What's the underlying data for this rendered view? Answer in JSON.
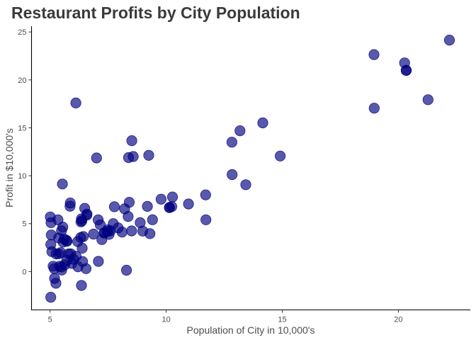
{
  "chart_data": {
    "type": "scatter",
    "title": "Restaurant Profits by City Population",
    "xlabel": "Population of City in 10,000's",
    "ylabel": "Profit in $10,000's",
    "xlim": [
      4.2,
      23.1
    ],
    "ylim": [
      -4.0,
      25.6
    ],
    "x_ticks": [
      5,
      10,
      15,
      20
    ],
    "y_ticks": [
      0,
      5,
      10,
      15,
      20,
      25
    ],
    "grid": false,
    "marker_color": "#000080",
    "marker_opacity": 0.65,
    "points": [
      {
        "x": 6.11,
        "y": 17.59
      },
      {
        "x": 5.53,
        "y": 9.13
      },
      {
        "x": 8.52,
        "y": 13.66
      },
      {
        "x": 7.0,
        "y": 11.85
      },
      {
        "x": 5.86,
        "y": 6.82
      },
      {
        "x": 8.38,
        "y": 11.89
      },
      {
        "x": 7.48,
        "y": 4.35
      },
      {
        "x": 8.58,
        "y": 12.0
      },
      {
        "x": 6.49,
        "y": 6.6
      },
      {
        "x": 5.05,
        "y": 3.82
      },
      {
        "x": 5.71,
        "y": 3.25
      },
      {
        "x": 14.16,
        "y": 15.51
      },
      {
        "x": 5.73,
        "y": 3.16
      },
      {
        "x": 8.41,
        "y": 7.23
      },
      {
        "x": 5.64,
        "y": 0.72
      },
      {
        "x": 5.37,
        "y": 3.51
      },
      {
        "x": 6.37,
        "y": 5.3
      },
      {
        "x": 5.13,
        "y": 0.56
      },
      {
        "x": 6.43,
        "y": 3.65
      },
      {
        "x": 7.07,
        "y": 5.39
      },
      {
        "x": 6.19,
        "y": 3.13
      },
      {
        "x": 20.27,
        "y": 21.77
      },
      {
        "x": 5.49,
        "y": 4.26
      },
      {
        "x": 6.33,
        "y": 5.19
      },
      {
        "x": 5.56,
        "y": 3.08
      },
      {
        "x": 18.95,
        "y": 22.64
      },
      {
        "x": 12.83,
        "y": 13.5
      },
      {
        "x": 10.96,
        "y": 7.05
      },
      {
        "x": 13.18,
        "y": 14.69
      },
      {
        "x": 22.2,
        "y": 24.15
      },
      {
        "x": 5.25,
        "y": -1.22
      },
      {
        "x": 6.59,
        "y": 5.99
      },
      {
        "x": 9.25,
        "y": 12.13
      },
      {
        "x": 5.89,
        "y": 1.85
      },
      {
        "x": 8.21,
        "y": 6.54
      },
      {
        "x": 7.93,
        "y": 4.56
      },
      {
        "x": 8.1,
        "y": 4.12
      },
      {
        "x": 5.61,
        "y": 3.39
      },
      {
        "x": 12.84,
        "y": 10.12
      },
      {
        "x": 6.35,
        "y": 5.5
      },
      {
        "x": 5.41,
        "y": 0.56
      },
      {
        "x": 6.87,
        "y": 3.91
      },
      {
        "x": 5.34,
        "y": 5.39
      },
      {
        "x": 8.29,
        "y": 0.14
      },
      {
        "x": 6.35,
        "y": -1.45
      },
      {
        "x": 5.18,
        "y": 0.31
      },
      {
        "x": 7.77,
        "y": 6.76
      },
      {
        "x": 5.01,
        "y": 5.7
      },
      {
        "x": 5.46,
        "y": 1.98
      },
      {
        "x": 20.34,
        "y": 20.99
      },
      {
        "x": 10.14,
        "y": 6.68
      },
      {
        "x": 7.33,
        "y": 4.03
      },
      {
        "x": 6.01,
        "y": 1.28
      },
      {
        "x": 7.23,
        "y": 3.34
      },
      {
        "x": 5.03,
        "y": -2.68
      },
      {
        "x": 6.55,
        "y": 0.3
      },
      {
        "x": 7.54,
        "y": 3.88
      },
      {
        "x": 5.04,
        "y": 5.1
      },
      {
        "x": 10.24,
        "y": 6.78
      },
      {
        "x": 5.5,
        "y": 0.48
      },
      {
        "x": 20.34,
        "y": 21.0
      },
      {
        "x": 10.14,
        "y": 6.68
      },
      {
        "x": 7.33,
        "y": 4.03
      },
      {
        "x": 5.03,
        "y": 2.83
      },
      {
        "x": 5.08,
        "y": 2.08
      },
      {
        "x": 5.8,
        "y": 1.84
      },
      {
        "x": 5.19,
        "y": -0.71
      },
      {
        "x": 5.5,
        "y": 0.16
      },
      {
        "x": 8.51,
        "y": 4.24
      },
      {
        "x": 9.19,
        "y": 6.8
      },
      {
        "x": 13.43,
        "y": 9.06
      },
      {
        "x": 8.99,
        "y": 4.22
      },
      {
        "x": 7.08,
        "y": 1.06
      },
      {
        "x": 5.87,
        "y": 7.15
      },
      {
        "x": 5.72,
        "y": 1.17
      },
      {
        "x": 6.58,
        "y": 5.89
      },
      {
        "x": 5.37,
        "y": 1.85
      },
      {
        "x": 5.26,
        "y": 1.84
      },
      {
        "x": 6.38,
        "y": 2.44
      },
      {
        "x": 8.36,
        "y": 5.75
      },
      {
        "x": 11.7,
        "y": 8.0
      },
      {
        "x": 6.12,
        "y": 1.6
      },
      {
        "x": 11.71,
        "y": 5.4
      },
      {
        "x": 7.16,
        "y": 4.88
      },
      {
        "x": 7.47,
        "y": 4.19
      },
      {
        "x": 5.55,
        "y": 4.64
      },
      {
        "x": 9.41,
        "y": 5.41
      },
      {
        "x": 9.3,
        "y": 3.95
      },
      {
        "x": 7.72,
        "y": 5.0
      },
      {
        "x": 8.88,
        "y": 5.1
      },
      {
        "x": 9.78,
        "y": 7.55
      },
      {
        "x": 10.27,
        "y": 7.78
      },
      {
        "x": 14.91,
        "y": 12.05
      },
      {
        "x": 21.28,
        "y": 17.93
      },
      {
        "x": 18.96,
        "y": 17.05
      },
      {
        "x": 6.32,
        "y": 3.55
      },
      {
        "x": 5.94,
        "y": 0.85
      },
      {
        "x": 6.4,
        "y": 1.05
      },
      {
        "x": 7.6,
        "y": 4.25
      },
      {
        "x": 6.2,
        "y": 0.5
      }
    ]
  }
}
